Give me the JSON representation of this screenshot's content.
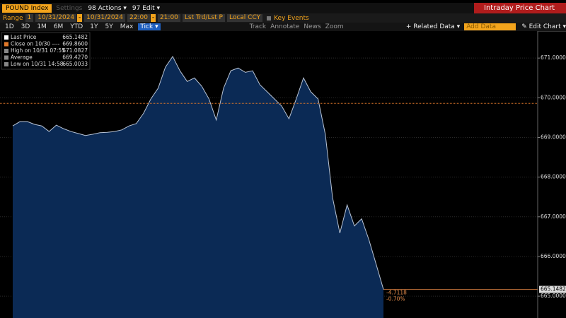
{
  "toolbar": {
    "security": "POUND Index",
    "greyed": "Settings",
    "actions": "98 Actions ▾",
    "edit": "97 Edit ▾",
    "title": "Intraday Price Chart"
  },
  "range_bar": {
    "label": "Range",
    "fields": [
      "1",
      "10/31/2024",
      "-",
      "10/31/2024",
      "22:00",
      "-",
      "21:00",
      "Lst Trd/Lst P",
      "Local CCY"
    ],
    "key_events": "Key Events"
  },
  "period_bar": {
    "tabs": [
      "1D",
      "3D",
      "1M",
      "6M",
      "YTD",
      "1Y",
      "5Y",
      "Max",
      "Tick ▾"
    ],
    "active": 8,
    "tools": [
      "Track",
      "Annotate",
      "News",
      "Zoom"
    ],
    "related": "+ Related Data ▾",
    "add": "Add Data",
    "edit_chart": "✎ Edit Chart ▾"
  },
  "chart_data": {
    "type": "area",
    "color": "#0b2a55",
    "line_color": "#b8c4d6",
    "values": [
      669.29,
      669.4,
      669.4,
      669.33,
      669.29,
      669.15,
      669.31,
      669.22,
      669.15,
      669.1,
      669.05,
      669.08,
      669.12,
      669.13,
      669.15,
      669.19,
      669.29,
      669.35,
      669.61,
      669.97,
      670.24,
      670.77,
      671.04,
      670.68,
      670.41,
      670.5,
      670.29,
      669.97,
      669.44,
      670.24,
      670.68,
      670.75,
      670.64,
      670.68,
      670.33,
      670.15,
      669.97,
      669.79,
      669.47,
      669.97,
      670.5,
      670.15,
      669.97,
      669.08,
      667.48,
      666.59,
      667.3,
      666.77,
      666.95,
      666.42,
      665.8,
      665.17
    ],
    "ylim": [
      664.45,
      671.68
    ],
    "yticks": [
      {
        "value": 665,
        "label": "665.0000"
      },
      {
        "value": 666,
        "label": "666.0000"
      },
      {
        "value": 667,
        "label": "667.0000"
      },
      {
        "value": 668,
        "label": "668.0000"
      },
      {
        "value": 669,
        "label": "669.0000"
      },
      {
        "value": 670,
        "label": "670.0000"
      },
      {
        "value": 671,
        "label": "671.0000"
      }
    ],
    "grid": true,
    "reference_line": {
      "value": 669.86,
      "color": "#e0782a"
    },
    "last_label": "665.1482",
    "change": "-4.7118",
    "change_pct": "-0.70%",
    "legend": [
      {
        "label": "Last Price",
        "value": "665.1482"
      },
      {
        "label": "Close on 10/30 ----",
        "value": "669.8600"
      },
      {
        "label": "High on 10/31 07:55",
        "value": "671.0827"
      },
      {
        "label": "Average",
        "value": "669.4270"
      },
      {
        "label": "Low on 10/31 14:58",
        "value": "665.0033"
      }
    ]
  }
}
